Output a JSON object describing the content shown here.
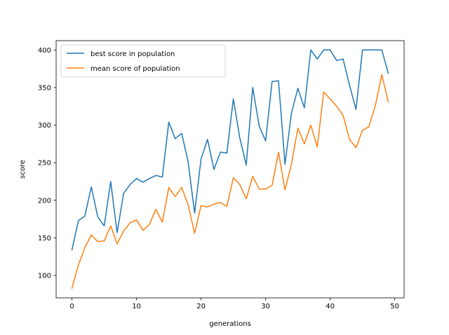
{
  "chart_data": {
    "type": "line",
    "xlabel": "generations",
    "ylabel": "score",
    "xlim": [
      -2.45,
      51.45
    ],
    "ylim": [
      70.2,
      412.4
    ],
    "xticks": [
      0,
      10,
      20,
      30,
      40,
      50
    ],
    "yticks": [
      100,
      150,
      200,
      250,
      300,
      350,
      400
    ],
    "legend_position": "top-left",
    "grid": false,
    "series": [
      {
        "name": "best score in population",
        "color": "#1f77b4",
        "x": [
          0,
          1,
          2,
          3,
          4,
          5,
          6,
          7,
          8,
          9,
          10,
          11,
          12,
          13,
          14,
          15,
          16,
          17,
          18,
          19,
          20,
          21,
          22,
          23,
          24,
          25,
          26,
          27,
          28,
          29,
          30,
          31,
          32,
          33,
          34,
          35,
          36,
          37,
          38,
          39,
          40,
          41,
          42,
          43,
          44,
          45,
          46,
          47,
          48,
          49
        ],
        "values": [
          134,
          173,
          179,
          218,
          178,
          166,
          225,
          157,
          209,
          221,
          229,
          224,
          229,
          233,
          231,
          304,
          282,
          289,
          251,
          183,
          255,
          281,
          241,
          264,
          263,
          335,
          283,
          247,
          350,
          299,
          279,
          358,
          359,
          248,
          316,
          349,
          323,
          400,
          388,
          400,
          400,
          386,
          388,
          353,
          321,
          400,
          400,
          400,
          400,
          369
        ]
      },
      {
        "name": "mean score of population",
        "color": "#ff7f0e",
        "x": [
          0,
          1,
          2,
          3,
          4,
          5,
          6,
          7,
          8,
          9,
          10,
          11,
          12,
          13,
          14,
          15,
          16,
          17,
          18,
          19,
          20,
          21,
          22,
          23,
          24,
          25,
          26,
          27,
          28,
          29,
          30,
          31,
          32,
          33,
          34,
          35,
          36,
          37,
          38,
          39,
          40,
          41,
          42,
          43,
          44,
          45,
          46,
          47,
          48,
          49
        ],
        "values": [
          83,
          114,
          137,
          154,
          145,
          146,
          166,
          142,
          159,
          170,
          174,
          160,
          168,
          188,
          171,
          217,
          205,
          217,
          194,
          156,
          193,
          191,
          195,
          197,
          192,
          230,
          221,
          202,
          232,
          215,
          215,
          220,
          264,
          214,
          248,
          296,
          275,
          300,
          271,
          344,
          335,
          325,
          313,
          281,
          270,
          293,
          298,
          326,
          367,
          331
        ]
      }
    ]
  }
}
